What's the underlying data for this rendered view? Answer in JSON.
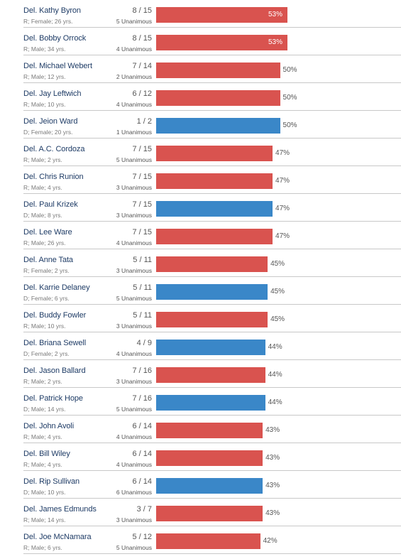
{
  "colors": {
    "R": "#d9534f",
    "D": "#3a87c8"
  },
  "chart_data": {
    "type": "bar",
    "orientation": "horizontal",
    "xlim": [
      0,
      100
    ],
    "rows": [
      {
        "name": "Del. Kathy Byron",
        "meta": "R; Female; 26 yrs.",
        "ratio": "8 / 15",
        "unanimous": "5 Unanimous",
        "value": 53,
        "label": "53%",
        "party": "R"
      },
      {
        "name": "Del. Bobby Orrock",
        "meta": "R; Male; 34 yrs.",
        "ratio": "8 / 15",
        "unanimous": "4 Unanimous",
        "value": 53,
        "label": "53%",
        "party": "R"
      },
      {
        "name": "Del. Michael Webert",
        "meta": "R; Male; 12 yrs.",
        "ratio": "7 / 14",
        "unanimous": "2 Unanimous",
        "value": 50,
        "label": "50%",
        "party": "R"
      },
      {
        "name": "Del. Jay Leftwich",
        "meta": "R; Male; 10 yrs.",
        "ratio": "6 / 12",
        "unanimous": "4 Unanimous",
        "value": 50,
        "label": "50%",
        "party": "R"
      },
      {
        "name": "Del. Jeion Ward",
        "meta": "D; Female; 20 yrs.",
        "ratio": "1 / 2",
        "unanimous": "1 Unanimous",
        "value": 50,
        "label": "50%",
        "party": "D"
      },
      {
        "name": "Del. A.C. Cordoza",
        "meta": "R; Male; 2 yrs.",
        "ratio": "7 / 15",
        "unanimous": "5 Unanimous",
        "value": 47,
        "label": "47%",
        "party": "R"
      },
      {
        "name": "Del. Chris Runion",
        "meta": "R; Male; 4 yrs.",
        "ratio": "7 / 15",
        "unanimous": "3 Unanimous",
        "value": 47,
        "label": "47%",
        "party": "R"
      },
      {
        "name": "Del. Paul Krizek",
        "meta": "D; Male; 8 yrs.",
        "ratio": "7 / 15",
        "unanimous": "3 Unanimous",
        "value": 47,
        "label": "47%",
        "party": "D"
      },
      {
        "name": "Del. Lee Ware",
        "meta": "R; Male; 26 yrs.",
        "ratio": "7 / 15",
        "unanimous": "4 Unanimous",
        "value": 47,
        "label": "47%",
        "party": "R"
      },
      {
        "name": "Del. Anne Tata",
        "meta": "R; Female; 2 yrs.",
        "ratio": "5 / 11",
        "unanimous": "3 Unanimous",
        "value": 45,
        "label": "45%",
        "party": "R"
      },
      {
        "name": "Del. Karrie Delaney",
        "meta": "D; Female; 6 yrs.",
        "ratio": "5 / 11",
        "unanimous": "5 Unanimous",
        "value": 45,
        "label": "45%",
        "party": "D"
      },
      {
        "name": "Del. Buddy Fowler",
        "meta": "R; Male; 10 yrs.",
        "ratio": "5 / 11",
        "unanimous": "3 Unanimous",
        "value": 45,
        "label": "45%",
        "party": "R"
      },
      {
        "name": "Del. Briana Sewell",
        "meta": "D; Female; 2 yrs.",
        "ratio": "4 / 9",
        "unanimous": "4 Unanimous",
        "value": 44,
        "label": "44%",
        "party": "D"
      },
      {
        "name": "Del. Jason Ballard",
        "meta": "R; Male; 2 yrs.",
        "ratio": "7 / 16",
        "unanimous": "3 Unanimous",
        "value": 44,
        "label": "44%",
        "party": "R"
      },
      {
        "name": "Del. Patrick Hope",
        "meta": "D; Male; 14 yrs.",
        "ratio": "7 / 16",
        "unanimous": "5 Unanimous",
        "value": 44,
        "label": "44%",
        "party": "D"
      },
      {
        "name": "Del. John Avoli",
        "meta": "R; Male; 4 yrs.",
        "ratio": "6 / 14",
        "unanimous": "4 Unanimous",
        "value": 43,
        "label": "43%",
        "party": "R"
      },
      {
        "name": "Del. Bill Wiley",
        "meta": "R; Male; 4 yrs.",
        "ratio": "6 / 14",
        "unanimous": "4 Unanimous",
        "value": 43,
        "label": "43%",
        "party": "R"
      },
      {
        "name": "Del. Rip Sullivan",
        "meta": "D; Male; 10 yrs.",
        "ratio": "6 / 14",
        "unanimous": "6 Unanimous",
        "value": 43,
        "label": "43%",
        "party": "D"
      },
      {
        "name": "Del. James Edmunds",
        "meta": "R; Male; 14 yrs.",
        "ratio": "3 / 7",
        "unanimous": "3 Unanimous",
        "value": 43,
        "label": "43%",
        "party": "R"
      },
      {
        "name": "Del. Joe McNamara",
        "meta": "R; Male; 6 yrs.",
        "ratio": "5 / 12",
        "unanimous": "5 Unanimous",
        "value": 42,
        "label": "42%",
        "party": "R"
      }
    ]
  }
}
